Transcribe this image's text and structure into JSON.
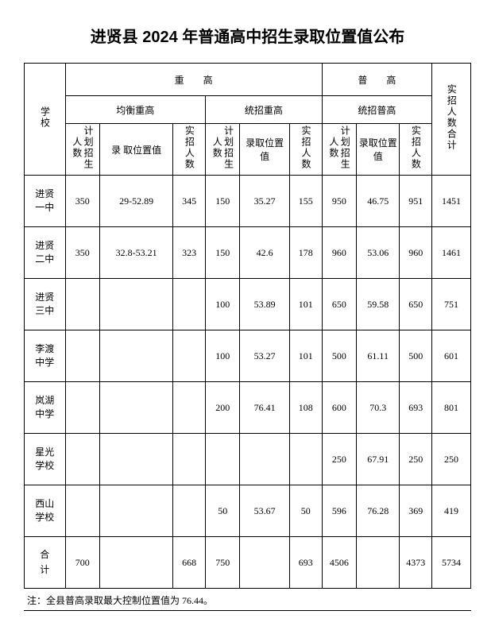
{
  "title": "进贤县 2024 年普通高中招生录取位置值公布",
  "note": "注：全县普高录取最大控制位置值为 76.44。",
  "headers": {
    "school": "学校",
    "zg": "重高",
    "pg": "普高",
    "total": "实招人数合计",
    "jhzg": "均衡重高",
    "tzzg": "统招重高",
    "tzpg": "统招普高",
    "plan": "计划招生人数",
    "score_long": "录 取位置值",
    "score_short": "录取位置值",
    "actual": "实招人数"
  },
  "rows": [
    {
      "school": "进贤一中",
      "jh_plan": "350",
      "jh_score": "29-52.89",
      "jh_actual": "345",
      "tz_plan": "150",
      "tz_score": "35.27",
      "tz_actual": "155",
      "pg_plan": "950",
      "pg_score": "46.75",
      "pg_actual": "951",
      "total": "1451"
    },
    {
      "school": "进贤二中",
      "jh_plan": "350",
      "jh_score": "32.8-53.21",
      "jh_actual": "323",
      "tz_plan": "150",
      "tz_score": "42.6",
      "tz_actual": "178",
      "pg_plan": "960",
      "pg_score": "53.06",
      "pg_actual": "960",
      "total": "1461"
    },
    {
      "school": "进贤三中",
      "jh_plan": "",
      "jh_score": "",
      "jh_actual": "",
      "tz_plan": "100",
      "tz_score": "53.89",
      "tz_actual": "101",
      "pg_plan": "650",
      "pg_score": "59.58",
      "pg_actual": "650",
      "total": "751"
    },
    {
      "school": "李渡中学",
      "jh_plan": "",
      "jh_score": "",
      "jh_actual": "",
      "tz_plan": "100",
      "tz_score": "53.27",
      "tz_actual": "101",
      "pg_plan": "500",
      "pg_score": "61.11",
      "pg_actual": "500",
      "total": "601"
    },
    {
      "school": "岚湖中学",
      "jh_plan": "",
      "jh_score": "",
      "jh_actual": "",
      "tz_plan": "200",
      "tz_score": "76.41",
      "tz_actual": "108",
      "pg_plan": "600",
      "pg_score": "70.3",
      "pg_actual": "693",
      "total": "801"
    },
    {
      "school": "星光学校",
      "jh_plan": "",
      "jh_score": "",
      "jh_actual": "",
      "tz_plan": "",
      "tz_score": "",
      "tz_actual": "",
      "pg_plan": "250",
      "pg_score": "67.91",
      "pg_actual": "250",
      "total": "250"
    },
    {
      "school": "西山学校",
      "jh_plan": "",
      "jh_score": "",
      "jh_actual": "",
      "tz_plan": "50",
      "tz_score": "53.67",
      "tz_actual": "50",
      "pg_plan": "596",
      "pg_score": "76.28",
      "pg_actual": "369",
      "total": "419"
    },
    {
      "school": "合计",
      "jh_plan": "700",
      "jh_score": "",
      "jh_actual": "668",
      "tz_plan": "750",
      "tz_score": "",
      "tz_actual": "693",
      "pg_plan": "4506",
      "pg_score": "",
      "pg_actual": "4373",
      "total": "5734"
    }
  ]
}
